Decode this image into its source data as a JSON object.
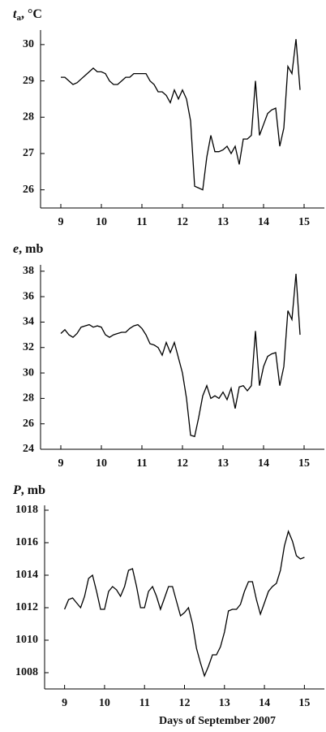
{
  "chart_data": [
    {
      "type": "line",
      "ylabel": {
        "symbol": "t",
        "subscript": "a",
        "unit": ", °C"
      },
      "color": "#000000",
      "x": [
        9.0,
        9.1,
        9.2,
        9.3,
        9.4,
        9.5,
        9.6,
        9.7,
        9.8,
        9.9,
        10.0,
        10.1,
        10.2,
        10.3,
        10.4,
        10.5,
        10.6,
        10.7,
        10.8,
        10.9,
        11.0,
        11.1,
        11.2,
        11.3,
        11.4,
        11.5,
        11.6,
        11.7,
        11.8,
        11.9,
        12.0,
        12.1,
        12.2,
        12.3,
        12.4,
        12.5,
        12.6,
        12.7,
        12.8,
        12.9,
        13.0,
        13.1,
        13.2,
        13.3,
        13.4,
        13.5,
        13.6,
        13.7,
        13.8,
        13.9,
        14.0,
        14.1,
        14.2,
        14.3,
        14.4,
        14.5,
        14.6,
        14.7,
        14.8,
        14.9
      ],
      "values": [
        29.1,
        29.1,
        29.0,
        28.9,
        28.95,
        29.05,
        29.15,
        29.25,
        29.35,
        29.25,
        29.25,
        29.2,
        29.0,
        28.9,
        28.9,
        29.0,
        29.1,
        29.1,
        29.2,
        29.2,
        29.2,
        29.2,
        29.0,
        28.9,
        28.7,
        28.7,
        28.6,
        28.4,
        28.75,
        28.5,
        28.75,
        28.5,
        27.9,
        26.1,
        26.05,
        26.0,
        26.9,
        27.5,
        27.05,
        27.05,
        27.1,
        27.2,
        27.0,
        27.2,
        26.7,
        27.4,
        27.4,
        27.5,
        29.0,
        27.5,
        27.8,
        28.1,
        28.2,
        28.25,
        27.2,
        27.7,
        29.4,
        29.2,
        30.15,
        28.75
      ],
      "xlim": [
        8.5,
        15.5
      ],
      "xticks": [
        9,
        10,
        11,
        12,
        13,
        14,
        15
      ],
      "ylim": [
        25.5,
        30.4
      ],
      "yticks": [
        26,
        27,
        28,
        29,
        30
      ]
    },
    {
      "type": "line",
      "ylabel": {
        "symbol": "e",
        "unit": ", mb"
      },
      "color": "#000000",
      "x": [
        9.0,
        9.1,
        9.2,
        9.3,
        9.4,
        9.5,
        9.6,
        9.7,
        9.8,
        9.9,
        10.0,
        10.1,
        10.2,
        10.3,
        10.4,
        10.5,
        10.6,
        10.7,
        10.8,
        10.9,
        11.0,
        11.1,
        11.2,
        11.3,
        11.4,
        11.5,
        11.6,
        11.7,
        11.8,
        11.9,
        12.0,
        12.1,
        12.2,
        12.3,
        12.4,
        12.5,
        12.6,
        12.7,
        12.8,
        12.9,
        13.0,
        13.1,
        13.2,
        13.3,
        13.4,
        13.5,
        13.6,
        13.7,
        13.8,
        13.9,
        14.0,
        14.1,
        14.2,
        14.3,
        14.4,
        14.5,
        14.6,
        14.7,
        14.8,
        14.9
      ],
      "values": [
        33.1,
        33.4,
        33.0,
        32.8,
        33.1,
        33.6,
        33.7,
        33.8,
        33.6,
        33.7,
        33.6,
        33.0,
        32.8,
        33.0,
        33.1,
        33.2,
        33.2,
        33.5,
        33.7,
        33.8,
        33.5,
        33.0,
        32.3,
        32.2,
        32.0,
        31.4,
        32.4,
        31.6,
        32.4,
        31.2,
        30.0,
        28.0,
        25.1,
        25.0,
        26.5,
        28.2,
        29.0,
        28.0,
        28.2,
        28.0,
        28.5,
        27.9,
        28.8,
        27.2,
        28.9,
        29.0,
        28.6,
        29.0,
        33.3,
        29.0,
        30.5,
        31.3,
        31.5,
        31.6,
        29.0,
        30.5,
        34.9,
        34.2,
        37.8,
        33.0
      ],
      "xlim": [
        8.5,
        15.5
      ],
      "xticks": [
        9,
        10,
        11,
        12,
        13,
        14,
        15
      ],
      "ylim": [
        24,
        38.5
      ],
      "yticks": [
        24,
        26,
        28,
        30,
        32,
        34,
        36,
        38
      ]
    },
    {
      "type": "line",
      "ylabel": {
        "symbol": "P",
        "unit": ", mb"
      },
      "color": "#000000",
      "x": [
        9.0,
        9.1,
        9.2,
        9.3,
        9.4,
        9.5,
        9.6,
        9.7,
        9.8,
        9.9,
        10.0,
        10.1,
        10.2,
        10.3,
        10.4,
        10.5,
        10.6,
        10.7,
        10.8,
        10.9,
        11.0,
        11.1,
        11.2,
        11.3,
        11.4,
        11.5,
        11.6,
        11.7,
        11.8,
        11.9,
        12.0,
        12.1,
        12.2,
        12.3,
        12.4,
        12.5,
        12.6,
        12.7,
        12.8,
        12.9,
        13.0,
        13.1,
        13.2,
        13.3,
        13.4,
        13.5,
        13.6,
        13.7,
        13.8,
        13.9,
        14.0,
        14.1,
        14.2,
        14.3,
        14.4,
        14.5,
        14.6,
        14.7,
        14.8,
        14.9,
        15.0
      ],
      "values": [
        1011.9,
        1012.5,
        1012.6,
        1012.3,
        1012.0,
        1012.7,
        1013.8,
        1014.0,
        1013.0,
        1011.9,
        1011.9,
        1013.0,
        1013.3,
        1013.1,
        1012.7,
        1013.3,
        1014.3,
        1014.4,
        1013.3,
        1012.0,
        1012.0,
        1013.0,
        1013.3,
        1012.7,
        1011.9,
        1012.6,
        1013.3,
        1013.3,
        1012.4,
        1011.5,
        1011.7,
        1012.0,
        1011.0,
        1009.5,
        1008.6,
        1007.8,
        1008.4,
        1009.1,
        1009.1,
        1009.6,
        1010.5,
        1011.8,
        1011.9,
        1011.9,
        1012.2,
        1013.0,
        1013.6,
        1013.6,
        1012.5,
        1011.6,
        1012.3,
        1013.0,
        1013.3,
        1013.5,
        1014.3,
        1015.8,
        1016.7,
        1016.1,
        1015.2,
        1015.0,
        1015.1
      ],
      "xlim": [
        8.5,
        15.5
      ],
      "xticks": [
        9,
        10,
        11,
        12,
        13,
        14,
        15
      ],
      "ylim": [
        1007,
        1018.3
      ],
      "yticks": [
        1008,
        1010,
        1012,
        1014,
        1016,
        1018
      ]
    }
  ],
  "xlabel": "Days of September 2007"
}
